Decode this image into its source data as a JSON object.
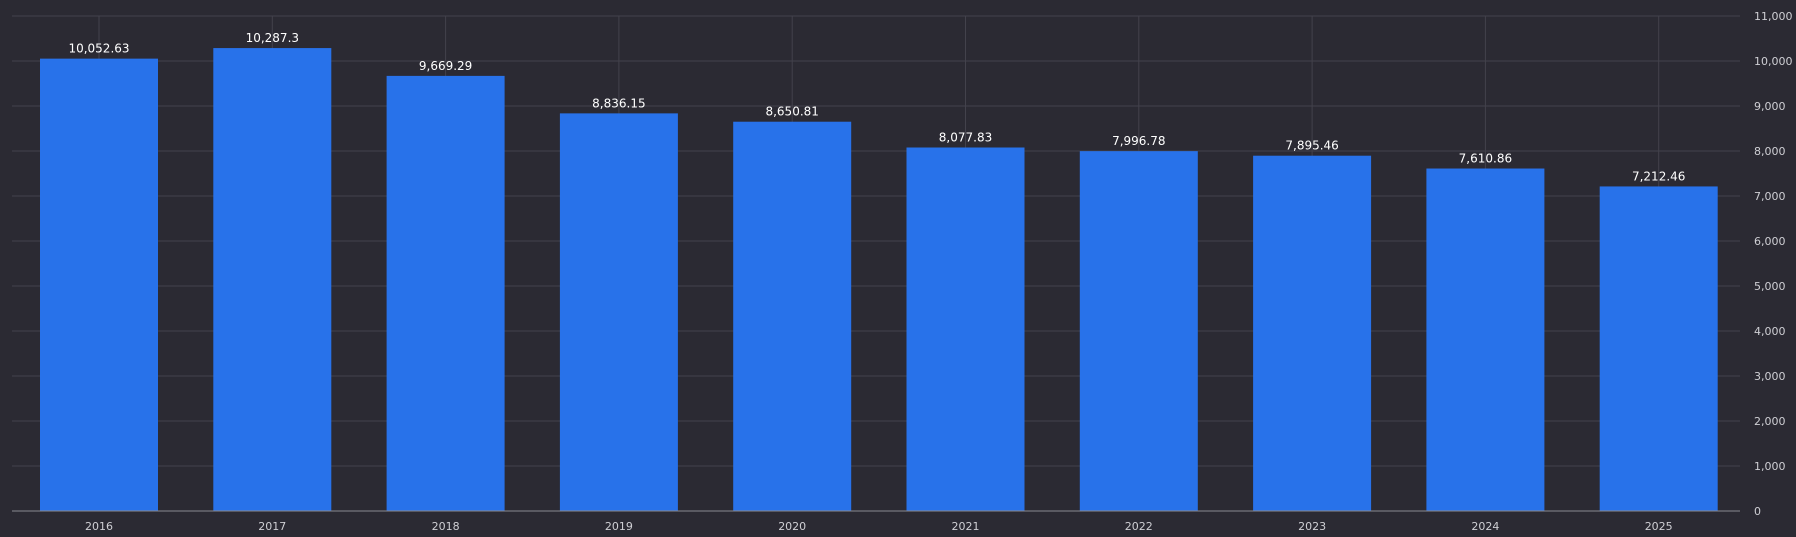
{
  "colors": {
    "background": "#2b2a33",
    "bar": "#2872ea",
    "grid": "#43424c",
    "axis_line": "#8a8990",
    "tick_text": "#cfcfd4",
    "value_label": "#ffffff"
  },
  "chart_data": {
    "type": "bar",
    "categories": [
      "2016",
      "2017",
      "2018",
      "2019",
      "2020",
      "2021",
      "2022",
      "2023",
      "2024",
      "2025"
    ],
    "values": [
      10052.63,
      10287.3,
      9669.29,
      8836.15,
      8650.81,
      8077.83,
      7996.78,
      7895.46,
      7610.86,
      7212.46
    ],
    "value_labels": [
      "10,052.63",
      "10,287.3",
      "9,669.29",
      "8,836.15",
      "8,650.81",
      "8,077.83",
      "7,996.78",
      "7,895.46",
      "7,610.86",
      "7,212.46"
    ],
    "title": "",
    "xlabel": "",
    "ylabel": "",
    "ylim": [
      0,
      11000
    ],
    "y_ticks": [
      0,
      1000,
      2000,
      3000,
      4000,
      5000,
      6000,
      7000,
      8000,
      9000,
      10000,
      11000
    ],
    "y_tick_labels": [
      "0",
      "1,000",
      "2,000",
      "3,000",
      "4,000",
      "5,000",
      "6,000",
      "7,000",
      "8,000",
      "9,000",
      "10,000",
      "11,000"
    ],
    "y_axis_position": "right",
    "grid": true,
    "legend": "none"
  }
}
